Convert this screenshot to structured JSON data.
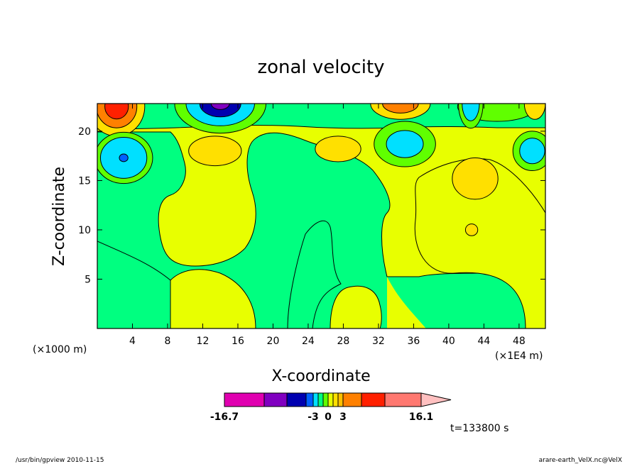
{
  "chart_data": {
    "type": "heatmap",
    "title": "zonal velocity",
    "xlabel": "X-coordinate",
    "ylabel": "Z-coordinate",
    "x_unit_left": "(×1000 m)",
    "x_unit_right": "(×1E4 m)",
    "xlim": [
      0,
      51
    ],
    "ylim": [
      0,
      22.8
    ],
    "xticks": [
      4,
      8,
      12,
      16,
      20,
      24,
      28,
      32,
      36,
      40,
      44,
      48
    ],
    "yticks": [
      5,
      10,
      15,
      20
    ],
    "time_label": "t=133800 s",
    "colorbar": {
      "colors": [
        "#e000b0",
        "#8000c0",
        "#0000b0",
        "#0060ff",
        "#00e0ff",
        "#00ff80",
        "#60ff00",
        "#e8ff00",
        "#ffe000",
        "#ffc000",
        "#ff8000",
        "#ff2000",
        "#ff7870",
        "#ffc0c0"
      ],
      "boundaries": [
        -16.7,
        -12,
        -9,
        -6,
        -3,
        -2,
        -1,
        0,
        1,
        2,
        3,
        6,
        9,
        13,
        16.1
      ],
      "labels": [
        {
          "text": "-16.7",
          "value": -16.7
        },
        {
          "text": "-3",
          "value": -3
        },
        {
          "text": "0",
          "value": 0
        },
        {
          "text": "3",
          "value": 3
        },
        {
          "text": "16.1",
          "value": 16.1
        }
      ]
    },
    "features": [
      {
        "type": "ellipse",
        "cx": 2.2,
        "cy": 22.5,
        "rx": 3.2,
        "ry": 3.0,
        "levels": [
          {
            "v": 1.5,
            "s": 1.0
          },
          {
            "v": 4.5,
            "s": 0.72
          },
          {
            "v": 7.5,
            "s": 0.42
          }
        ]
      },
      {
        "type": "ellipse",
        "cx": 14.0,
        "cy": 22.8,
        "rx": 5.2,
        "ry": 3.0,
        "levels": [
          {
            "v": -0.5,
            "s": 1.0
          },
          {
            "v": -2.5,
            "s": 0.75
          },
          {
            "v": -7.5,
            "s": 0.45
          },
          {
            "v": -10.5,
            "s": 0.2
          }
        ]
      },
      {
        "type": "ellipse",
        "cx": 34.5,
        "cy": 22.8,
        "rx": 3.4,
        "ry": 1.6,
        "levels": [
          {
            "v": 1.5,
            "s": 1.0
          },
          {
            "v": 4.5,
            "s": 0.6
          }
        ]
      },
      {
        "type": "ellipse",
        "cx": 3.0,
        "cy": 17.3,
        "rx": 3.3,
        "ry": 2.6,
        "levels": [
          {
            "v": -0.5,
            "s": 1.0
          },
          {
            "v": -2.5,
            "s": 0.8
          },
          {
            "v": -5,
            "s": 0.15
          }
        ]
      },
      {
        "type": "ellipse",
        "cx": 13.4,
        "cy": 18.0,
        "rx": 3.0,
        "ry": 1.5,
        "levels": [
          {
            "v": 1.5,
            "s": 1.0
          }
        ]
      },
      {
        "type": "ellipse",
        "cx": 27.4,
        "cy": 18.2,
        "rx": 2.6,
        "ry": 1.3,
        "levels": [
          {
            "v": 1.5,
            "s": 1.0
          }
        ]
      },
      {
        "type": "ellipse",
        "cx": 35.0,
        "cy": 18.7,
        "rx": 3.5,
        "ry": 2.3,
        "levels": [
          {
            "v": -0.5,
            "s": 1.0
          },
          {
            "v": -2.5,
            "s": 0.6
          }
        ]
      },
      {
        "type": "ellipse",
        "cx": 49.5,
        "cy": 18.0,
        "rx": 2.2,
        "ry": 2.0,
        "levels": [
          {
            "v": -0.5,
            "s": 1.0
          },
          {
            "v": -2.5,
            "s": 0.65
          }
        ]
      },
      {
        "type": "ellipse",
        "cx": 43.0,
        "cy": 15.2,
        "rx": 2.6,
        "ry": 2.1,
        "levels": [
          {
            "v": 1.5,
            "s": 1.0
          }
        ]
      },
      {
        "type": "ellipse",
        "cx": 42.6,
        "cy": 10.0,
        "rx": 0.7,
        "ry": 0.6,
        "levels": [
          {
            "v": 1.5,
            "s": 1.0
          }
        ]
      },
      {
        "type": "ellipse",
        "cx": 45.5,
        "cy": 22.5,
        "rx": 4.5,
        "ry": 1.5,
        "levels": [
          {
            "v": -0.5,
            "s": 1.0
          }
        ]
      },
      {
        "type": "ellipse",
        "cx": 42.5,
        "cy": 22.8,
        "rx": 1.4,
        "ry": 2.5,
        "levels": [
          {
            "v": -0.5,
            "s": 1.0
          },
          {
            "v": -2.5,
            "s": 0.7
          }
        ]
      },
      {
        "type": "ellipse",
        "cx": 49.8,
        "cy": 22.8,
        "rx": 1.2,
        "ry": 1.6,
        "levels": [
          {
            "v": 1.5,
            "s": 1.0
          }
        ]
      }
    ]
  },
  "footer": {
    "left": "/usr/bin/gpview  2010-11-15",
    "right": "arare-earth_VelX.nc@VelX"
  }
}
